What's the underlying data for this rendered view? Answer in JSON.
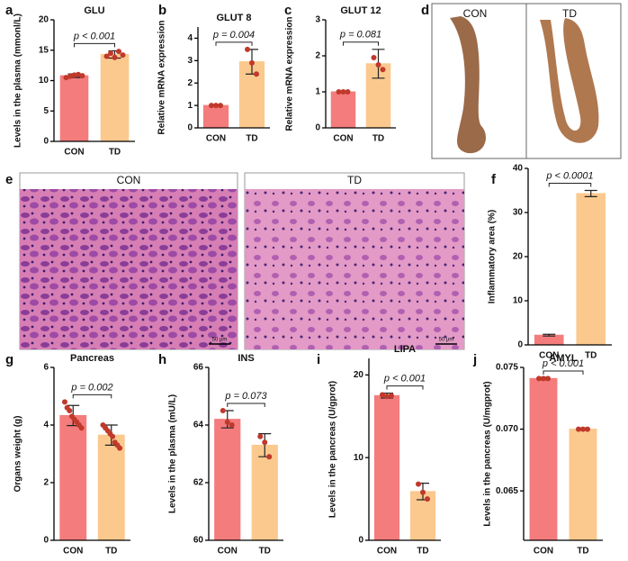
{
  "chart_data": [
    {
      "type": "bar",
      "label": "a",
      "title": "GLU",
      "y_label": "Levels in the plasma (mmonl/L)",
      "categories": [
        "CON",
        "TD"
      ],
      "values": [
        10.8,
        14.3
      ],
      "errors": [
        0.3,
        0.6
      ],
      "points": [
        [
          10.5,
          10.7,
          10.9,
          11.0,
          10.8
        ],
        [
          14.0,
          14.5,
          13.8,
          14.8,
          14.2
        ]
      ],
      "colors": [
        "#f47c7c",
        "#fbc98e"
      ],
      "ylim": [
        0,
        20
      ],
      "yticks": [
        0,
        5,
        10,
        15,
        20
      ],
      "annotation": "p < 0.001"
    },
    {
      "type": "bar",
      "label": "b",
      "title": "GLUT 8",
      "y_label": "Relative mRNA expression",
      "categories": [
        "CON",
        "TD"
      ],
      "values": [
        1.0,
        2.95
      ],
      "errors": [
        0,
        0.55
      ],
      "points": [
        [
          1.0,
          1.0,
          1.0
        ],
        [
          3.5,
          2.9,
          2.4
        ]
      ],
      "colors": [
        "#f47c7c",
        "#fbc98e"
      ],
      "ylim": [
        0,
        4.5
      ],
      "yticks": [
        0,
        1,
        2,
        3,
        4
      ],
      "annotation": "p = 0.004"
    },
    {
      "type": "bar",
      "label": "c",
      "title": "GLUT 12",
      "y_label": "Relative mRNA expression",
      "categories": [
        "CON",
        "TD"
      ],
      "values": [
        1.0,
        1.78
      ],
      "errors": [
        0,
        0.4
      ],
      "points": [
        [
          1.0,
          1.0,
          1.0
        ],
        [
          1.95,
          1.75,
          1.62
        ]
      ],
      "colors": [
        "#f47c7c",
        "#fbc98e"
      ],
      "ylim": [
        0,
        3
      ],
      "yticks": [
        0,
        1,
        2,
        3
      ],
      "annotation": "p = 0.081"
    },
    {
      "type": "bar",
      "label": "f",
      "title": null,
      "y_label": "Inflammatory area (%)",
      "categories": [
        "CON",
        "TD"
      ],
      "values": [
        2.2,
        34.3
      ],
      "errors": [
        0.2,
        0.7
      ],
      "points": [
        [],
        []
      ],
      "colors": [
        "#f47c7c",
        "#fbc98e"
      ],
      "ylim": [
        0,
        40
      ],
      "yticks": [
        0,
        10,
        20,
        30,
        40
      ],
      "annotation": "p < 0.0001"
    },
    {
      "type": "bar",
      "label": "g",
      "title": "Pancreas",
      "y_label": "Organs weight (g)",
      "categories": [
        "CON",
        "TD"
      ],
      "values": [
        4.33,
        3.65
      ],
      "errors": [
        0.35,
        0.35
      ],
      "points": [
        [
          4.8,
          4.6,
          4.5,
          4.3,
          4.2,
          4.1,
          4.0,
          3.9
        ],
        [
          4.0,
          3.9,
          3.8,
          3.7,
          3.6,
          3.4,
          3.3,
          3.2
        ]
      ],
      "colors": [
        "#f47c7c",
        "#fbc98e"
      ],
      "ylim": [
        0,
        6
      ],
      "yticks": [
        0,
        2,
        4,
        6
      ],
      "annotation": "p = 0.002"
    },
    {
      "type": "bar",
      "label": "h",
      "title": "INS",
      "y_label": "Levels in the plasma (mU/L)",
      "categories": [
        "CON",
        "TD"
      ],
      "values": [
        64.2,
        63.3
      ],
      "errors": [
        0.3,
        0.4
      ],
      "points": [
        [
          64.5,
          64.1,
          64.0
        ],
        [
          63.6,
          63.4,
          62.9
        ]
      ],
      "colors": [
        "#f47c7c",
        "#fbc98e"
      ],
      "ylim": [
        60,
        66
      ],
      "yticks": [
        60,
        62,
        64,
        66
      ],
      "annotation": "p = 0.073"
    },
    {
      "type": "bar",
      "label": "i",
      "title": "LIPA",
      "y_label": "Levels in the pancreas (U/gprot)",
      "categories": [
        "CON",
        "TD"
      ],
      "values": [
        17.5,
        5.9
      ],
      "errors": [
        0.3,
        1.0
      ],
      "points": [
        [
          17.6,
          17.4,
          17.5
        ],
        [
          6.8,
          5.8,
          5.0
        ]
      ],
      "colors": [
        "#f47c7c",
        "#fbc98e"
      ],
      "ylim": [
        0,
        22
      ],
      "yticks": [
        0,
        10,
        20
      ],
      "annotation": "p < 0.001"
    },
    {
      "type": "bar",
      "label": "j",
      "title": "AMYL",
      "y_label": "Levels in the pancreas (U/mgprot)",
      "categories": [
        "CON",
        "TD"
      ],
      "values": [
        0.0741,
        0.07
      ],
      "errors": [
        0.0001,
        0.0001
      ],
      "points": [
        [
          0.0741,
          0.0741,
          0.0741
        ],
        [
          0.07,
          0.07,
          0.07
        ]
      ],
      "colors": [
        "#f47c7c",
        "#fbc98e"
      ],
      "ylim": [
        0.061,
        0.075
      ],
      "yticks": [
        {
          "value": 0.065,
          "label": "0.065"
        },
        {
          "value": 0.07,
          "label": "0.070"
        },
        {
          "value": 0.075,
          "label": "0.075"
        }
      ],
      "annotation": "p < 0.001"
    }
  ],
  "photo": {
    "label": "d",
    "captions": [
      "CON",
      "TD"
    ]
  },
  "histology": {
    "label": "e",
    "captions": [
      "CON",
      "TD"
    ],
    "scale_bar": "50 μm"
  }
}
